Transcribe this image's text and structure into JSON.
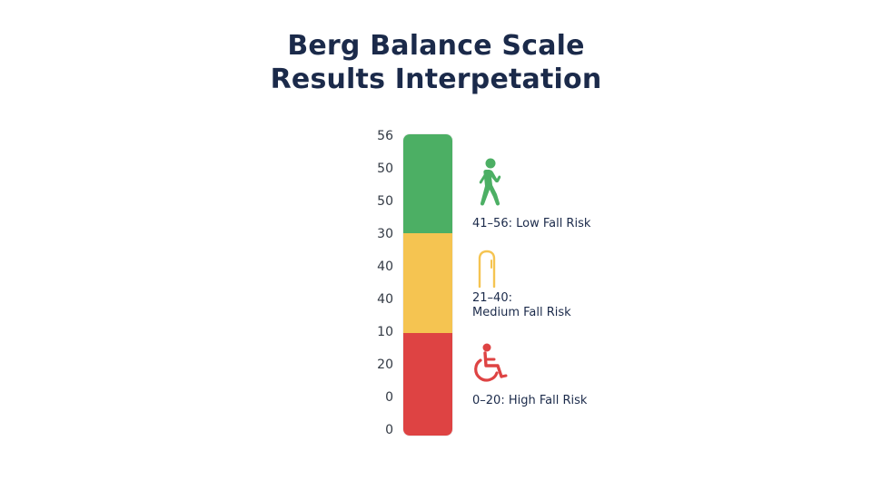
{
  "title": {
    "line1": "Berg Balance Scale",
    "line2": "Results Interpetation"
  },
  "scale": {
    "tick_labels": [
      "56",
      "50",
      "50",
      "30",
      "40",
      "40",
      "10",
      "20",
      "0",
      "0"
    ]
  },
  "categories": [
    {
      "id": "low",
      "range_label": "41–56: Low Fall Risk",
      "color": "#4caf64",
      "icon": "walking-person-icon"
    },
    {
      "id": "medium",
      "range_label_line1": "21–40:",
      "range_label_line2": "Medium Fall Risk",
      "color": "#f5c451",
      "icon": "walking-cane-icon"
    },
    {
      "id": "high",
      "range_label": "0–20: High Fall Risk",
      "color": "#de4343",
      "icon": "wheelchair-icon"
    }
  ]
}
